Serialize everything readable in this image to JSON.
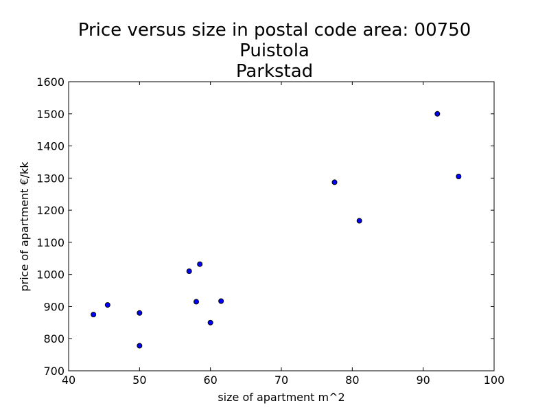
{
  "chart_data": {
    "type": "scatter",
    "title": [
      "Price versus size in postal code area: 00750",
      "Puistola",
      "Parkstad"
    ],
    "xlabel": "size of apartment m^2",
    "ylabel": "price of apartment €/kk",
    "xlim": [
      40,
      100
    ],
    "ylim": [
      700,
      1600
    ],
    "xticks": [
      40,
      50,
      60,
      70,
      80,
      90,
      100
    ],
    "yticks": [
      700,
      800,
      900,
      1000,
      1100,
      1200,
      1300,
      1400,
      1500,
      1600
    ],
    "grid": false,
    "marker_color": "#0000ff",
    "points": [
      {
        "x": 43.5,
        "y": 875
      },
      {
        "x": 45.5,
        "y": 905
      },
      {
        "x": 50,
        "y": 880
      },
      {
        "x": 50,
        "y": 778
      },
      {
        "x": 57,
        "y": 1010
      },
      {
        "x": 58,
        "y": 915
      },
      {
        "x": 58.5,
        "y": 1032
      },
      {
        "x": 60,
        "y": 850
      },
      {
        "x": 61.5,
        "y": 917
      },
      {
        "x": 77.5,
        "y": 1287
      },
      {
        "x": 81,
        "y": 1167
      },
      {
        "x": 92,
        "y": 1500
      },
      {
        "x": 95,
        "y": 1305
      }
    ]
  }
}
